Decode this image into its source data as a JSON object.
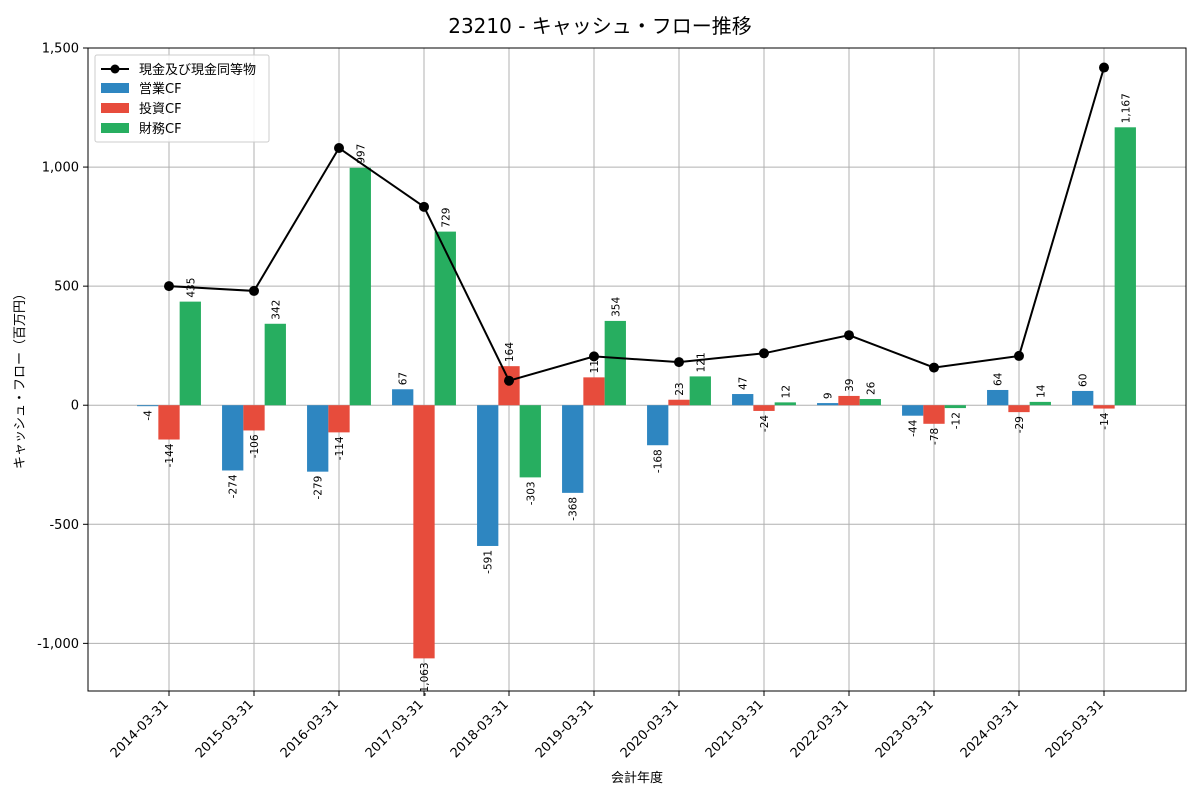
{
  "chart_data": {
    "type": "bar",
    "title": "23210 - キャッシュ・フロー推移",
    "xlabel": "会計年度",
    "ylabel": "キャッシュ・フロー（百万円）",
    "ylim": [
      -1200,
      1500
    ],
    "yticks": [
      -1000,
      -500,
      0,
      500,
      1000,
      1500
    ],
    "ytick_labels": [
      "-1,000",
      "-500",
      "0",
      "500",
      "1,000",
      "1,500"
    ],
    "grid": true,
    "legend_placement": "top-left",
    "categories": [
      "2014-03-31",
      "2015-03-31",
      "2016-03-31",
      "2017-03-31",
      "2018-03-31",
      "2019-03-31",
      "2020-03-31",
      "2021-03-31",
      "2022-03-31",
      "2023-03-31",
      "2024-03-31",
      "2025-03-31"
    ],
    "series": [
      {
        "name": "営業CF",
        "kind": "bar",
        "color": "#2e86c1",
        "values": [
          -4,
          -274,
          -279,
          67,
          -591,
          -368,
          -168,
          47,
          9,
          -44,
          64,
          60
        ],
        "labels": [
          "-4",
          "-274",
          "-279",
          "67",
          "-591",
          "-368",
          "-168",
          "47",
          "9",
          "-44",
          "64",
          "60"
        ]
      },
      {
        "name": "投資CF",
        "kind": "bar",
        "color": "#e74c3c",
        "values": [
          -144,
          -106,
          -114,
          -1063,
          164,
          117,
          23,
          -24,
          39,
          -78,
          -29,
          -14
        ],
        "labels": [
          "-144",
          "-106",
          "-114",
          "-1,063",
          "164",
          "117",
          "23",
          "-24",
          "39",
          "-78",
          "-29",
          "-14"
        ]
      },
      {
        "name": "財務CF",
        "kind": "bar",
        "color": "#27ae60",
        "values": [
          435,
          342,
          997,
          729,
          -303,
          354,
          121,
          12,
          26,
          -12,
          14,
          1167
        ],
        "labels": [
          "435",
          "342",
          "997",
          "729",
          "-303",
          "354",
          "121",
          "12",
          "26",
          "-12",
          "14",
          "1,167"
        ]
      },
      {
        "name": "現金及び現金同等物",
        "kind": "line",
        "color": "#000000",
        "values": [
          500,
          480,
          1080,
          833,
          103,
          205,
          181,
          218,
          294,
          158,
          207,
          1418
        ]
      }
    ]
  }
}
